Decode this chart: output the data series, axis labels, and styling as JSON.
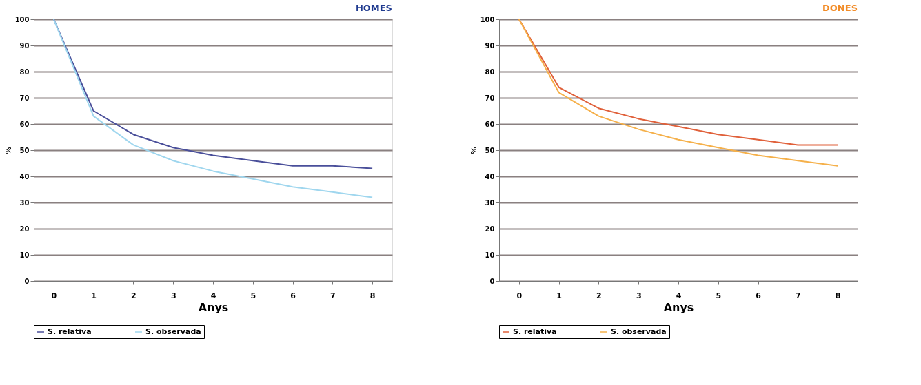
{
  "chart_data": [
    {
      "type": "line",
      "title": "HOMES",
      "xlabel": "Anys",
      "ylabel": "%",
      "categories": [
        "0",
        "1",
        "2",
        "3",
        "4",
        "5",
        "6",
        "7",
        "8"
      ],
      "series": [
        {
          "name": "S. relativa",
          "color": "#4a4f9a",
          "values": [
            100,
            65,
            56,
            51,
            48,
            46,
            44,
            44,
            43
          ]
        },
        {
          "name": "S. observada",
          "color": "#9fd6ee",
          "values": [
            100,
            63,
            52,
            46,
            42,
            39,
            36,
            34,
            32
          ]
        }
      ],
      "ylim": [
        0,
        100
      ],
      "yticks": [
        0,
        10,
        20,
        30,
        40,
        50,
        60,
        70,
        80,
        90,
        100
      ],
      "grid": "y",
      "legend": "bottom",
      "marker": "none",
      "line_style": "solid"
    },
    {
      "type": "line",
      "title": "DONES",
      "xlabel": "Anys",
      "ylabel": "%",
      "categories": [
        "0",
        "1",
        "2",
        "3",
        "4",
        "5",
        "6",
        "7",
        "8"
      ],
      "series": [
        {
          "name": "S. relativa",
          "color": "#e0603a",
          "values": [
            100,
            74,
            66,
            62,
            59,
            56,
            54,
            52,
            52
          ]
        },
        {
          "name": "S. observada",
          "color": "#f5b04a",
          "values": [
            100,
            72,
            63,
            58,
            54,
            51,
            48,
            46,
            44
          ]
        }
      ],
      "ylim": [
        0,
        100
      ],
      "yticks": [
        0,
        10,
        20,
        30,
        40,
        50,
        60,
        70,
        80,
        90,
        100
      ],
      "grid": "y",
      "legend": "bottom",
      "marker": "none",
      "line_style": "solid"
    }
  ]
}
